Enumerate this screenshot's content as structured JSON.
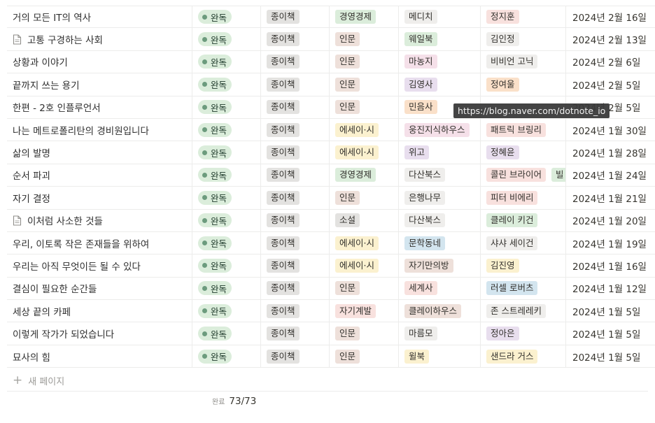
{
  "rows": [
    {
      "title": "거의 모든 IT의 역사",
      "has_doc_icon": false,
      "status": "완독",
      "format": "종이책",
      "genre": "경영경제",
      "genre_color": "t-green",
      "publisher": "메디치",
      "publisher_color": "t-lgray",
      "authors": [
        {
          "name": "정지훈",
          "color": "t-red"
        }
      ],
      "date": "2024년 2월 16일"
    },
    {
      "title": "고통 구경하는 사회",
      "has_doc_icon": true,
      "status": "완독",
      "format": "종이책",
      "genre": "인문",
      "genre_color": "t-brown",
      "publisher": "웨일북",
      "publisher_color": "t-green",
      "authors": [
        {
          "name": "김인정",
          "color": "t-lgray"
        }
      ],
      "date": "2024년 2월 13일"
    },
    {
      "title": "상황과 이야기",
      "has_doc_icon": false,
      "status": "완독",
      "format": "종이책",
      "genre": "인문",
      "genre_color": "t-brown",
      "publisher": "마농지",
      "publisher_color": "t-pink",
      "authors": [
        {
          "name": "비비언 고닉",
          "color": "t-lgray"
        }
      ],
      "date": "2024년 2월 6일"
    },
    {
      "title": "끝까지 쓰는 용기",
      "has_doc_icon": false,
      "status": "완독",
      "format": "종이책",
      "genre": "인문",
      "genre_color": "t-brown",
      "publisher": "김영사",
      "publisher_color": "t-purple",
      "authors": [
        {
          "name": "정여울",
          "color": "t-orange"
        }
      ],
      "date": "2024년 2월 5일"
    },
    {
      "title": "한편 - 2호 인플루언서",
      "has_doc_icon": false,
      "status": "완독",
      "format": "종이책",
      "genre": "인문",
      "genre_color": "t-brown",
      "publisher": "민음사",
      "publisher_color": "t-orange",
      "authors": [],
      "date": "2024년 2월 5일"
    },
    {
      "title": "나는 메트로폴리탄의 경비원입니다",
      "has_doc_icon": false,
      "status": "완독",
      "format": "종이책",
      "genre": "에세이·시",
      "genre_color": "t-yellow",
      "publisher": "웅진지식하우스",
      "publisher_color": "t-pink",
      "authors": [
        {
          "name": "패트릭 브링리",
          "color": "t-red"
        }
      ],
      "date": "2024년 1월 30일"
    },
    {
      "title": "삶의 발명",
      "has_doc_icon": false,
      "status": "완독",
      "format": "종이책",
      "genre": "에세이·시",
      "genre_color": "t-yellow",
      "publisher": "위고",
      "publisher_color": "t-purple",
      "authors": [
        {
          "name": "정혜윤",
          "color": "t-purple"
        }
      ],
      "date": "2024년 1월 28일"
    },
    {
      "title": "순서 파괴",
      "has_doc_icon": false,
      "status": "완독",
      "format": "종이책",
      "genre": "경영경제",
      "genre_color": "t-green",
      "publisher": "다산북스",
      "publisher_color": "t-lgray",
      "authors": [
        {
          "name": "콜린 브라이어",
          "color": "t-red"
        },
        {
          "name": "빌",
          "color": "t-green"
        }
      ],
      "date": "2024년 1월 24일"
    },
    {
      "title": "자기 결정",
      "has_doc_icon": false,
      "status": "완독",
      "format": "종이책",
      "genre": "인문",
      "genre_color": "t-brown",
      "publisher": "은행나무",
      "publisher_color": "t-lgray",
      "authors": [
        {
          "name": "피터 비에리",
          "color": "t-red"
        }
      ],
      "date": "2024년 1월 21일"
    },
    {
      "title": "이처럼 사소한 것들",
      "has_doc_icon": true,
      "status": "완독",
      "format": "종이책",
      "genre": "소설",
      "genre_color": "t-gray",
      "publisher": "다산북스",
      "publisher_color": "t-lgray",
      "authors": [
        {
          "name": "클레이 키건",
          "color": "t-green"
        }
      ],
      "date": "2024년 1월 20일"
    },
    {
      "title": "우리, 이토록 작은 존재들을 위하여",
      "has_doc_icon": false,
      "status": "완독",
      "format": "종이책",
      "genre": "에세이·시",
      "genre_color": "t-yellow",
      "publisher": "문학동네",
      "publisher_color": "t-blue",
      "authors": [
        {
          "name": "샤샤 세이건",
          "color": "t-lgray"
        }
      ],
      "date": "2024년 1월 19일"
    },
    {
      "title": "우리는 아직 무엇이든 될 수 있다",
      "has_doc_icon": false,
      "status": "완독",
      "format": "종이책",
      "genre": "에세이·시",
      "genre_color": "t-yellow",
      "publisher": "자기만의방",
      "publisher_color": "t-brown",
      "authors": [
        {
          "name": "김진영",
          "color": "t-yellow"
        }
      ],
      "date": "2024년 1월 16일"
    },
    {
      "title": "결심이 필요한 순간들",
      "has_doc_icon": false,
      "status": "완독",
      "format": "종이책",
      "genre": "인문",
      "genre_color": "t-brown",
      "publisher": "세계사",
      "publisher_color": "t-red",
      "authors": [
        {
          "name": "러셀 로버츠",
          "color": "t-blue"
        }
      ],
      "date": "2024년 1월 12일"
    },
    {
      "title": "세상 끝의 카페",
      "has_doc_icon": false,
      "status": "완독",
      "format": "종이책",
      "genre": "자기계발",
      "genre_color": "t-red",
      "publisher": "클레이하우스",
      "publisher_color": "t-brown",
      "authors": [
        {
          "name": "존 스트레레키",
          "color": "t-lgray"
        }
      ],
      "date": "2024년 1월 5일"
    },
    {
      "title": "이렇게 작가가 되었습니다",
      "has_doc_icon": false,
      "status": "완독",
      "format": "종이책",
      "genre": "인문",
      "genre_color": "t-brown",
      "publisher": "마름모",
      "publisher_color": "t-lgray",
      "authors": [
        {
          "name": "정아은",
          "color": "t-purple"
        }
      ],
      "date": "2024년 1월 5일"
    },
    {
      "title": "묘사의 힘",
      "has_doc_icon": false,
      "status": "완독",
      "format": "종이책",
      "genre": "인문",
      "genre_color": "t-brown",
      "publisher": "윌북",
      "publisher_color": "t-yellow",
      "authors": [
        {
          "name": "샌드라 거스",
          "color": "t-yellow"
        }
      ],
      "date": "2024년 1월 5일"
    }
  ],
  "new_page": {
    "label": "새 페이지"
  },
  "summary": {
    "label": "완료",
    "value": "73/73"
  },
  "tooltip": {
    "text": "https://blog.naver.com/dotnote_io"
  }
}
